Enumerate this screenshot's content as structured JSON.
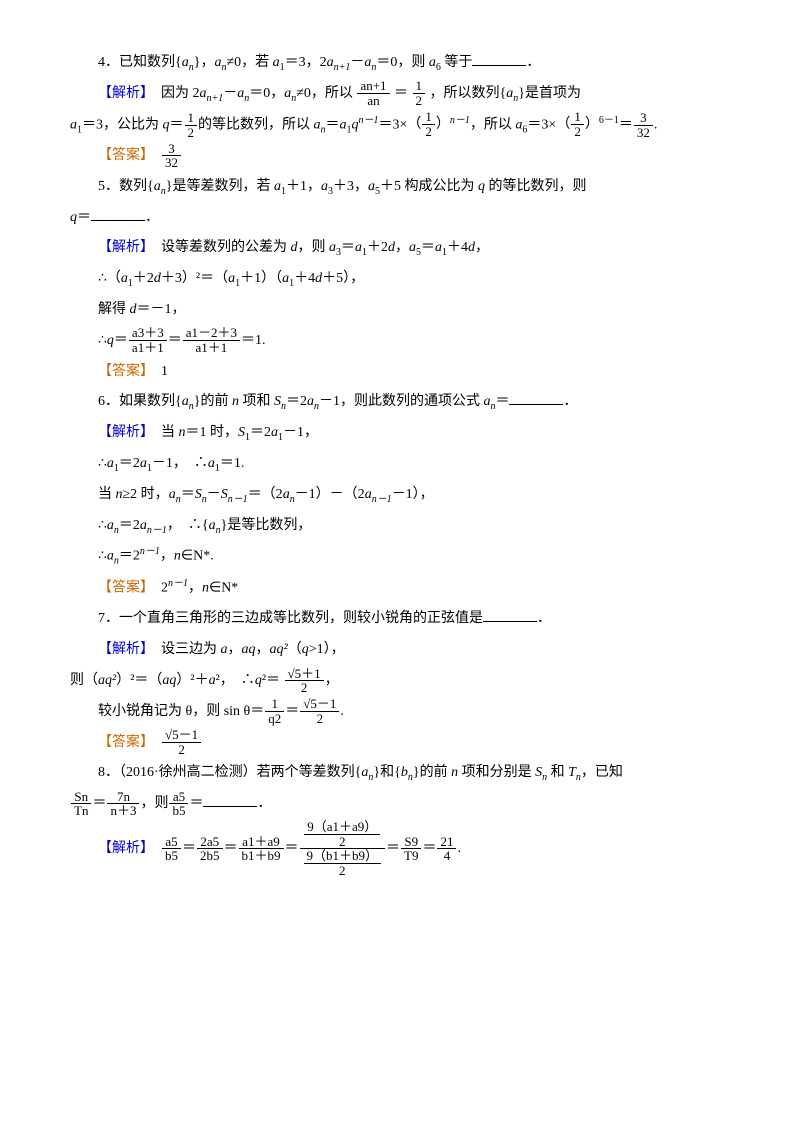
{
  "labels": {
    "analysis": "【解析】",
    "answer": "【答案】"
  },
  "punct": {
    "period": "．",
    "comma": "，",
    "colon": "："
  },
  "q4": {
    "prefix": "4．已知数列{",
    "an": "a",
    "sub_n": "n",
    "text1": "}，",
    "neq": "≠0，若 ",
    "a1eq": "＝3，2",
    "anp1": "n+1",
    "minus": "－",
    "eq0": "＝0，则 ",
    "a6": "6",
    "ask": " 等于",
    "ana1": "　因为 2",
    "ana2": "＝0，",
    "ana3": "≠0，所以 ",
    "frac_top": "an+1",
    "frac_bot": "an",
    "eq": "＝",
    "half_top": "1",
    "half_bot": "2",
    "ana4": "，所以数列{",
    "ana5": "}是首项为",
    "line2a": "＝3，公比为 ",
    "q": "q",
    "line2b": "的等比数列，所以 ",
    "formula": "q",
    "nminus1": "n－1",
    "eq3x": "＝3×",
    "so": "，所以 ",
    "six_m1": "6－1",
    "eqres": "＝",
    "res_top": "3",
    "res_bot": "32",
    "ans_top": "3",
    "ans_bot": "32"
  },
  "q5": {
    "prefix": "5．数列{",
    "text1": "}是等差数列，若 ",
    "a1p1": "＋1，",
    "a3p3": "＋3，",
    "a5p5": "＋5 构成公比为 ",
    "q": "q",
    "text2": " 的等比数列，则",
    "ask": "＝",
    "ana1": "　设等差数列的公差为 ",
    "d": "d",
    "ana2": "，则 ",
    "a3eq": "＝",
    "p2d": "＋2",
    "a5eq": "＝",
    "p4d": "＋4",
    "line2": "∴（",
    "paren1": "＋2",
    "plus3sq": "＋3）²＝（",
    "plus1": "＋1）（",
    "plus4d5": "＋4",
    "plus5": "＋5），",
    "line3": "解得 ",
    "eqm1": "＝－1，",
    "line4": "∴",
    "frac1_top": "a3＋3",
    "frac1_bot": "a1＋1",
    "frac2_top": "a1－2＋3",
    "frac2_bot": "a1＋1",
    "eq1": "＝1.",
    "ans": "1"
  },
  "q6": {
    "prefix": "6．如果数列{",
    "text1": "}的前 ",
    "n": "n",
    "text2": " 项和 ",
    "S": "S",
    "eq2a": "＝2",
    "minus1": "－1，则此数列的通项公式 ",
    "ask": "＝",
    "ana1": "　当 ",
    "n1": "＝1 时，",
    "S1": "＝2",
    "m1c": "－1，",
    "line2": "∴",
    "a1eq": "＝2",
    "m1so": "－1，　∴",
    "eq1p": "＝1.",
    "line3": "当 ",
    "nge2": "≥2 时，",
    "SnmSnm1": "＝",
    "Snm1sub": "n－1",
    "paren": "＝（2",
    "m1m": "－1）－（2",
    "m1e": "－1），",
    "line4": "∴",
    "eq2anm1": "＝2",
    "so_geo": "，　∴{",
    "isgeo": "}是等比数列，",
    "line5": "∴",
    "eq2nm1": "＝2",
    "nN": "，",
    "nN2": "∈N*.",
    "ans": "2",
    "ans_exp": "n－1",
    "ans_tail": "，",
    "ans_tail2": "∈N*"
  },
  "q7": {
    "prefix": "7．一个直角三角形的三边成等比数列，则较小锐角的正弦值是",
    "ana1": "　设三边为 ",
    "a": "a",
    "aq": "aq",
    "aq2": "aq²",
    "qgt1": "（",
    "q": "q",
    "gt1": ">1），",
    "line2a": "则（",
    "sq2": "）²＝（",
    "sq1": "）²＋",
    "sq0": "²，　∴",
    "q2eq": "²＝",
    "frac_top": "√5＋1",
    "frac_bot": "2",
    "comma": "，",
    "line3": "较小锐角记为 θ，则 sin θ＝",
    "frac2_top": "1",
    "frac2_bot": "q2",
    "eq": "＝",
    "frac3_top": "√5－1",
    "frac3_bot": "2",
    "period": ".",
    "ans_top": "√5－1",
    "ans_bot": "2"
  },
  "q8": {
    "prefix": "8．（2016·徐州高二检测）若两个等差数列{",
    "and": "}和{",
    "b": "b",
    "text1": "}的前 ",
    "n": "n",
    "text2": " 项和分别是 ",
    "S": "S",
    "and2": " 和 ",
    "T": "T",
    "known": "，已知",
    "fracL_top": "Sn",
    "fracL_bot": "Tn",
    "eq": "＝",
    "fracR_top": "7n",
    "fracR_bot": "n＋3",
    "then": "，则",
    "frac_a5b5_top": "a5",
    "frac_a5b5_bot": "b5",
    "ask": "＝",
    "ana_f1_top": "a5",
    "ana_f1_bot": "b5",
    "ana_f2_top": "2a5",
    "ana_f2_bot": "2b5",
    "ana_f3_top": "a1＋a9",
    "ana_f3_bot": "b1＋b9",
    "ana_innerA_top": "9（a1＋a9）",
    "ana_innerA_bot": "2",
    "ana_innerB_top": "9（b1＋b9）",
    "ana_innerB_bot": "2",
    "ana_f5_top": "S9",
    "ana_f5_bot": "T9",
    "ana_f6_top": "21",
    "ana_f6_bot": "4",
    "period": "."
  }
}
